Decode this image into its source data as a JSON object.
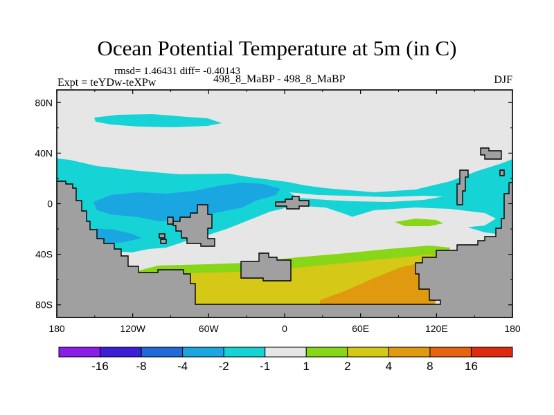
{
  "chart_data": {
    "type": "heatmap",
    "title": "Ocean Potential Temperature at 5m (in C)",
    "stats_text": "rmsd= 1.46431 diff= -0.40143",
    "left_label": "Expt = teYDw-teXPw",
    "center_label": "498_8_MaBP - 498_8_MaBP",
    "right_label": "DJF",
    "x_ticks": [
      "180",
      "120W",
      "60W",
      "0",
      "60E",
      "120E",
      "180"
    ],
    "x_values": [
      -180,
      -120,
      -60,
      0,
      60,
      120,
      180
    ],
    "y_ticks": [
      "80N",
      "40N",
      "0",
      "40S",
      "80S"
    ],
    "y_values": [
      80,
      40,
      0,
      -40,
      -80
    ],
    "xlim": [
      -180,
      180
    ],
    "ylim": [
      -90,
      90
    ],
    "colorbar": {
      "labels": [
        "-16",
        "-8",
        "-4",
        "-2",
        "-1",
        "1",
        "2",
        "4",
        "8",
        "16"
      ],
      "colors": [
        "#8a1ee6",
        "#3a1fd6",
        "#1e6ad8",
        "#1aa6e0",
        "#16d4d6",
        "#e6e6e6",
        "#88d618",
        "#d6c816",
        "#e09a10",
        "#e66410",
        "#e02a10"
      ]
    },
    "regions": [
      {
        "name": "land",
        "color": "#a0a0a0"
      },
      {
        "name": "neutral",
        "color": "#e6e6e6"
      },
      {
        "name": "minus-1-to-2",
        "color": "#16d4d6"
      },
      {
        "name": "minus-2-to-4",
        "color": "#1aa6e0"
      },
      {
        "name": "plus-1-to-2",
        "color": "#88d618"
      },
      {
        "name": "plus-2-to-4",
        "color": "#d6c816"
      },
      {
        "name": "plus-4-to-8",
        "color": "#e09a10"
      }
    ]
  }
}
